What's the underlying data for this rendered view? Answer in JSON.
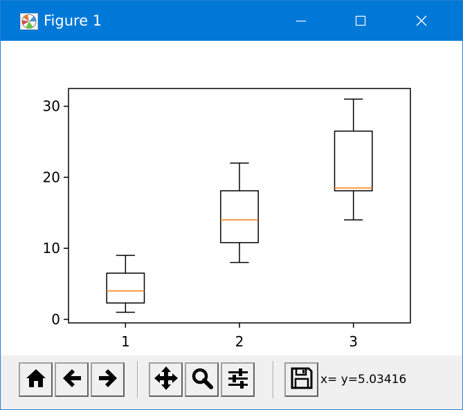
{
  "window": {
    "title": "Figure 1",
    "app_icon": "matplotlib-icon",
    "controls": {
      "minimize_icon": "minimize-icon",
      "maximize_icon": "maximize-icon",
      "close_icon": "close-icon"
    },
    "colors": {
      "titlebar": "#0078d7",
      "title_text": "#ffffff"
    }
  },
  "chart_data": {
    "type": "boxplot",
    "categories": [
      "1",
      "2",
      "3"
    ],
    "boxes": [
      {
        "whisker_low": 1,
        "q1": 2.3,
        "median": 4,
        "q3": 6.5,
        "whisker_high": 9
      },
      {
        "whisker_low": 8,
        "q1": 10.8,
        "median": 14,
        "q3": 18.1,
        "whisker_high": 22
      },
      {
        "whisker_low": 14,
        "q1": 18.1,
        "median": 18.5,
        "q3": 26.5,
        "whisker_high": 31
      }
    ],
    "x_ticks": [
      "1",
      "2",
      "3"
    ],
    "y_ticks": [
      0,
      10,
      20,
      30
    ],
    "xlim": [
      0.5,
      3.5
    ],
    "ylim": [
      -0.5,
      32.5
    ],
    "grid": false,
    "colors": {
      "box": "#000000",
      "median": "#ff7f0e",
      "axes": "#000000"
    }
  },
  "toolbar": {
    "buttons": [
      {
        "name": "home-button",
        "icon": "home-icon"
      },
      {
        "name": "back-button",
        "icon": "arrow-left-icon"
      },
      {
        "name": "forward-button",
        "icon": "arrow-right-icon"
      },
      {
        "name": "pan-button",
        "icon": "move-icon"
      },
      {
        "name": "zoom-button",
        "icon": "magnifier-icon"
      },
      {
        "name": "configure-subplots-button",
        "icon": "sliders-icon"
      },
      {
        "name": "save-button",
        "icon": "floppy-disk-icon"
      }
    ],
    "coordinate_readout": "x= y=5.03416"
  }
}
